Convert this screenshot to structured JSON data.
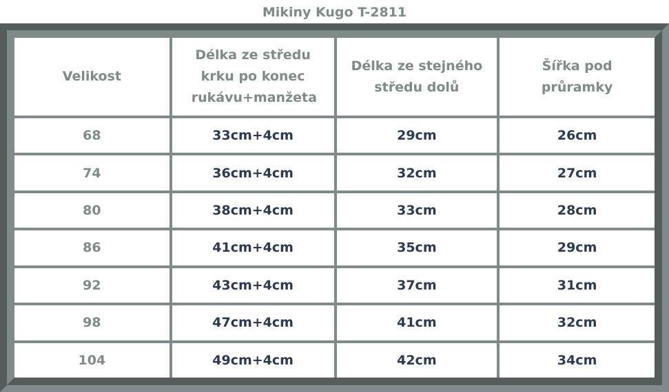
{
  "title": "Mikiny Kugo T-2811",
  "table": {
    "headers": [
      "Velikost",
      "Délka ze středu krku po konec rukávu+manžeta",
      "Délka ze stejného středu dolů",
      "Šířka pod průramky"
    ],
    "rows": [
      [
        "68",
        "33cm+4cm",
        "29cm",
        "26cm"
      ],
      [
        "74",
        "36cm+4cm",
        "32cm",
        "27cm"
      ],
      [
        "80",
        "38cm+4cm",
        "33cm",
        "28cm"
      ],
      [
        "86",
        "41cm+4cm",
        "35cm",
        "29cm"
      ],
      [
        "92",
        "43cm+4cm",
        "37cm",
        "31cm"
      ],
      [
        "98",
        "47cm+4cm",
        "41cm",
        "32cm"
      ],
      [
        "104",
        "49cm+4cm",
        "42cm",
        "34cm"
      ]
    ]
  },
  "colors": {
    "frame_dark": "#545c5c",
    "frame_light": "#7f8a8a",
    "header_text": "#7f8a8a",
    "cell_text": "#2c3a4f"
  }
}
